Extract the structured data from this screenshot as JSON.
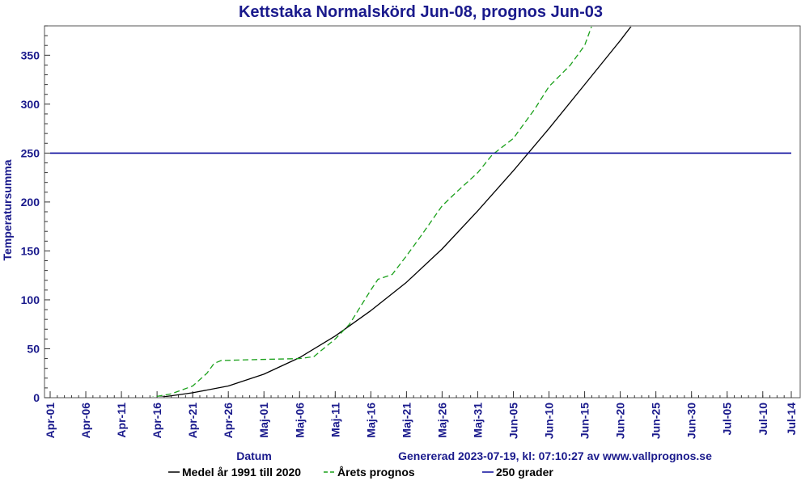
{
  "chart_data": {
    "type": "line",
    "title": "Kettstaka Normalskörd Jun-08, prognos Jun-03",
    "xlabel": "Datum",
    "ylabel": "Temperatursumma",
    "credit": "Genererad 2023-07-19, kl: 07:10:27 av www.vallprognos.se",
    "ylim": [
      0,
      380
    ],
    "yticks": [
      "0",
      "50",
      "100",
      "150",
      "200",
      "250",
      "300",
      "350"
    ],
    "xlim": [
      "2023-04-01",
      "2023-07-14"
    ],
    "xticks": [
      "Apr-01",
      "Apr-06",
      "Apr-11",
      "Apr-16",
      "Apr-21",
      "Apr-26",
      "Maj-01",
      "Maj-06",
      "Maj-11",
      "Maj-16",
      "Maj-21",
      "Maj-26",
      "Maj-31",
      "Jun-05",
      "Jun-10",
      "Jun-15",
      "Jun-20",
      "Jun-25",
      "Jun-30",
      "Jul-05",
      "Jul-10",
      "Jul-14"
    ],
    "grid": false,
    "legend_position": "bottom",
    "series": [
      {
        "name": "Medel år 1991 till 2020",
        "color": "#000000",
        "style": "solid",
        "points": [
          [
            "2023-04-01",
            0
          ],
          [
            "2023-04-16",
            0
          ],
          [
            "2023-04-18",
            2
          ],
          [
            "2023-04-21",
            5
          ],
          [
            "2023-04-26",
            12
          ],
          [
            "2023-05-01",
            24
          ],
          [
            "2023-05-06",
            41
          ],
          [
            "2023-05-11",
            63
          ],
          [
            "2023-05-16",
            89
          ],
          [
            "2023-05-21",
            118
          ],
          [
            "2023-05-26",
            152
          ],
          [
            "2023-05-31",
            191
          ],
          [
            "2023-06-05",
            232
          ],
          [
            "2023-06-10",
            275
          ],
          [
            "2023-06-15",
            320
          ],
          [
            "2023-06-20",
            365
          ],
          [
            "2023-06-22",
            384
          ]
        ]
      },
      {
        "name": "Årets prognos",
        "color": "#1aa01a",
        "style": "dashed",
        "points": [
          [
            "2023-04-01",
            0
          ],
          [
            "2023-04-15",
            0
          ],
          [
            "2023-04-18",
            4
          ],
          [
            "2023-04-21",
            12
          ],
          [
            "2023-04-23",
            25
          ],
          [
            "2023-04-24",
            35
          ],
          [
            "2023-04-25",
            38
          ],
          [
            "2023-04-30",
            39
          ],
          [
            "2023-05-06",
            40
          ],
          [
            "2023-05-08",
            42
          ],
          [
            "2023-05-11",
            60
          ],
          [
            "2023-05-13",
            75
          ],
          [
            "2023-05-16",
            110
          ],
          [
            "2023-05-17",
            121
          ],
          [
            "2023-05-19",
            126
          ],
          [
            "2023-05-21",
            145
          ],
          [
            "2023-05-23",
            165
          ],
          [
            "2023-05-26",
            196
          ],
          [
            "2023-05-28",
            210
          ],
          [
            "2023-05-31",
            230
          ],
          [
            "2023-06-02",
            248
          ],
          [
            "2023-06-05",
            265
          ],
          [
            "2023-06-08",
            295
          ],
          [
            "2023-06-10",
            318
          ],
          [
            "2023-06-13",
            340
          ],
          [
            "2023-06-15",
            360
          ],
          [
            "2023-06-16",
            380
          ]
        ]
      },
      {
        "name": "250 grader",
        "color": "#0a0a9c",
        "style": "solid",
        "points": [
          [
            "2023-04-01",
            250
          ],
          [
            "2023-07-14",
            250
          ]
        ]
      }
    ]
  }
}
